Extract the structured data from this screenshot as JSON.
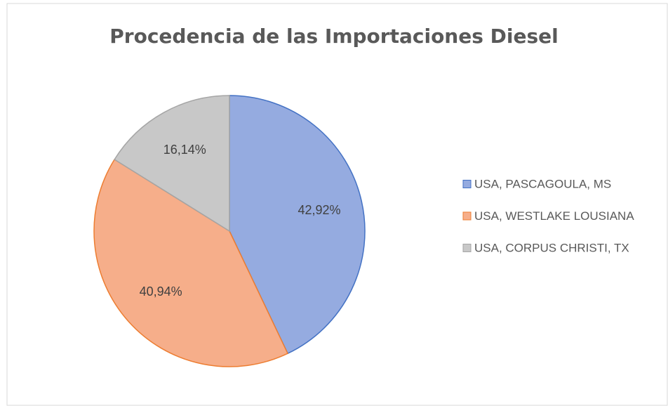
{
  "chart_data": {
    "type": "pie",
    "title": "Procedencia de las Importaciones Diesel",
    "categories": [
      "USA, PASCAGOULA, MS",
      "USA, WESTLAKE LOUSIANA",
      "USA, CORPUS CHRISTI, TX"
    ],
    "values": [
      42.92,
      40.94,
      16.14
    ],
    "value_labels": [
      "42,92%",
      "40,94%",
      "16,14%"
    ],
    "colors": [
      "#95abe0",
      "#f6ae8a",
      "#c8c8c8"
    ],
    "edge_colors": [
      "#4472c4",
      "#ed7d31",
      "#a5a5a5"
    ],
    "legend": "right"
  }
}
